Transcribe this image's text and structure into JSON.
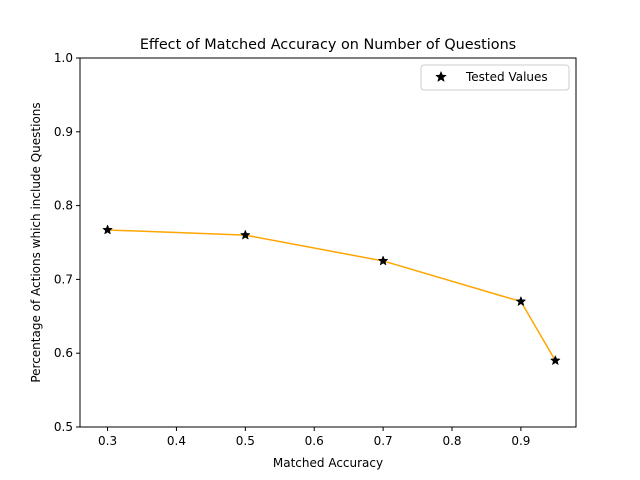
{
  "chart_data": {
    "type": "line",
    "title": "Effect of Matched Accuracy on Number of Questions",
    "xlabel": "Matched Accuracy",
    "ylabel": "Percentage of Actions which include Questions",
    "xlim": [
      0.26,
      0.98
    ],
    "ylim": [
      0.5,
      1.0
    ],
    "x_ticks": [
      0.3,
      0.4,
      0.5,
      0.6,
      0.7,
      0.8,
      0.9
    ],
    "x_tick_labels": [
      "0.3",
      "0.4",
      "0.5",
      "0.6",
      "0.7",
      "0.8",
      "0.9"
    ],
    "y_ticks": [
      0.5,
      0.6,
      0.7,
      0.8,
      0.9,
      1.0
    ],
    "y_tick_labels": [
      "0.5",
      "0.6",
      "0.7",
      "0.8",
      "0.9",
      "1.0"
    ],
    "grid": false,
    "legend_position": "top-right",
    "line_color": "#ffa500",
    "marker_color": "#000000",
    "series": [
      {
        "name": "Tested Values",
        "marker": "star",
        "x": [
          0.3,
          0.5,
          0.7,
          0.9,
          0.95
        ],
        "y": [
          0.767,
          0.76,
          0.725,
          0.67,
          0.59
        ]
      }
    ]
  }
}
